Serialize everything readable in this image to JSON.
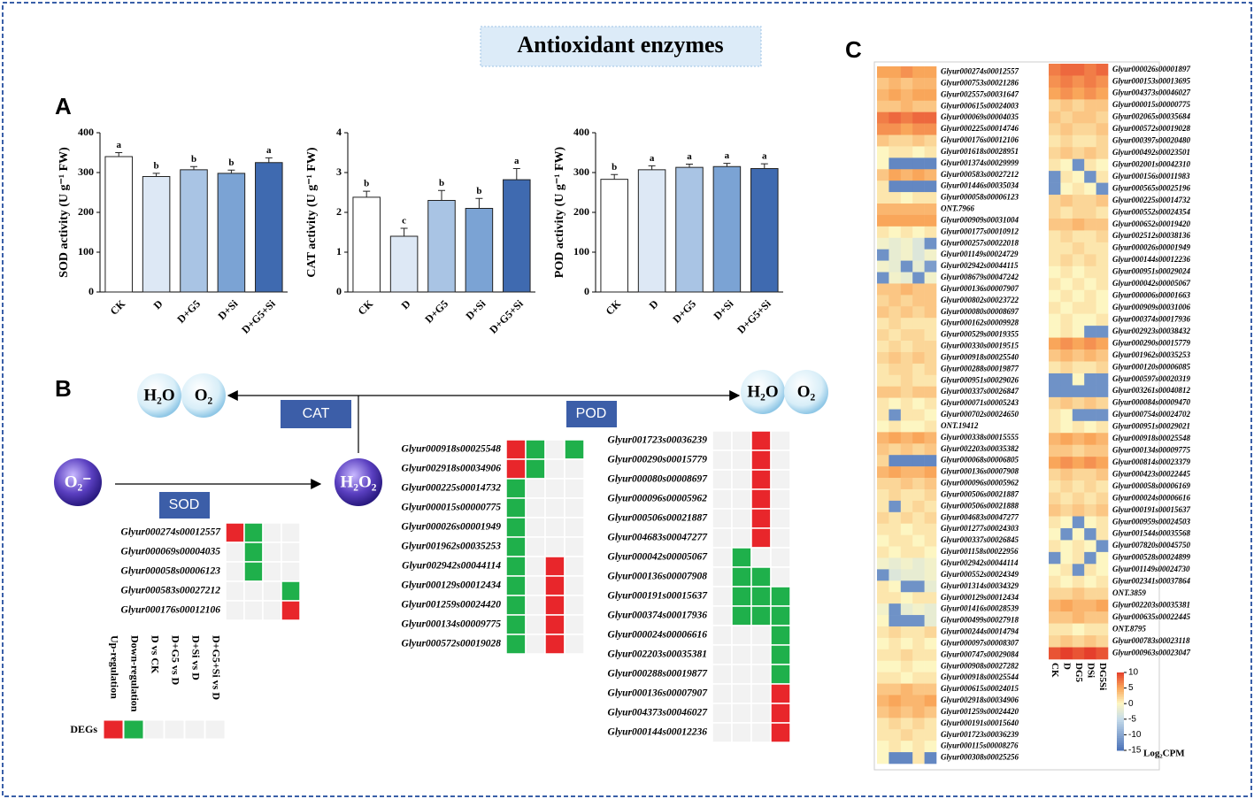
{
  "title": "Antioxidant enzymes",
  "panel_labels": [
    "A",
    "B",
    "C"
  ],
  "chart_data": [
    {
      "type": "bar",
      "ylabel": "SOD activity (U g⁻¹ FW)",
      "categories": [
        "CK",
        "D",
        "D+G5",
        "D+Si",
        "D+G5+Si"
      ],
      "values": [
        340,
        290,
        307,
        298,
        325
      ],
      "errors": [
        10,
        8,
        8,
        8,
        12
      ],
      "letters": [
        "a",
        "b",
        "b",
        "b",
        "a"
      ],
      "colors": [
        "#ffffff",
        "#dde8f5",
        "#a9c4e4",
        "#7ba3d4",
        "#3f6ab0"
      ],
      "ylim": [
        0,
        400
      ],
      "yticks": [
        0,
        100,
        200,
        300,
        400
      ]
    },
    {
      "type": "bar",
      "ylabel": "CAT activity (U g⁻¹ FW)",
      "categories": [
        "CK",
        "D",
        "D+G5",
        "D+Si",
        "D+G5+Si"
      ],
      "values": [
        2.38,
        1.4,
        2.3,
        2.1,
        2.82
      ],
      "errors": [
        0.15,
        0.2,
        0.25,
        0.25,
        0.28
      ],
      "letters": [
        "b",
        "c",
        "b",
        "b",
        "a"
      ],
      "colors": [
        "#ffffff",
        "#dde8f5",
        "#a9c4e4",
        "#7ba3d4",
        "#3f6ab0"
      ],
      "ylim": [
        0,
        4
      ],
      "yticks": [
        0,
        1,
        2,
        3,
        4
      ]
    },
    {
      "type": "bar",
      "ylabel": "POD activity (U g⁻¹ FW)",
      "categories": [
        "CK",
        "D",
        "D+G5",
        "D+Si",
        "D+G5+Si"
      ],
      "values": [
        283,
        307,
        313,
        315,
        310
      ],
      "errors": [
        12,
        10,
        8,
        8,
        12
      ],
      "letters": [
        "b",
        "a",
        "a",
        "a",
        "a"
      ],
      "colors": [
        "#ffffff",
        "#dde8f5",
        "#a9c4e4",
        "#7ba3d4",
        "#3f6ab0"
      ],
      "ylim": [
        0,
        400
      ],
      "yticks": [
        0,
        100,
        200,
        300,
        400
      ]
    }
  ],
  "pathway": {
    "h2o_left": "H₂O",
    "o2_left": "O₂",
    "cat": "CAT",
    "pod": "POD",
    "sod": "SOD",
    "superoxide": "O₂⁻",
    "h2o2": "H₂O₂",
    "h2o_right": "H₂O",
    "o2_right": "O₂"
  },
  "deg": {
    "legend_label": "DEGs",
    "legend_columns": [
      "Up-regulation",
      "Down-regulation",
      "D vs CK",
      "D+G5 vs D",
      "D+Si vs D",
      "D+G5+Si vs D"
    ],
    "up_color": "#e8262b",
    "down_color": "#1fb04b",
    "sod": {
      "genes": [
        "Glyur000274s00012557",
        "Glyur000069s00004035",
        "Glyur000058s00006123",
        "Glyur000583s00027212",
        "Glyur000176s00012106"
      ],
      "values": [
        [
          1,
          -1,
          0,
          0
        ],
        [
          0,
          -1,
          0,
          0
        ],
        [
          0,
          -1,
          0,
          0
        ],
        [
          0,
          0,
          0,
          -1
        ],
        [
          0,
          0,
          0,
          1
        ]
      ]
    },
    "pod_left": {
      "genes": [
        "Glyur000918s00025548",
        "Glyur002918s00034906",
        "Glyur000225s00014732",
        "Glyur000015s00000775",
        "Glyur000026s00001949",
        "Glyur001962s00035253",
        "Glyur002942s00044114",
        "Glyur000129s00012434",
        "Glyur001259s00024420",
        "Glyur000134s00009775",
        "Glyur000572s00019028"
      ],
      "values": [
        [
          1,
          -1,
          0,
          -1
        ],
        [
          1,
          -1,
          0,
          0
        ],
        [
          -1,
          0,
          0,
          0
        ],
        [
          -1,
          0,
          0,
          0
        ],
        [
          -1,
          0,
          0,
          0
        ],
        [
          -1,
          0,
          0,
          0
        ],
        [
          -1,
          0,
          1,
          0
        ],
        [
          -1,
          0,
          1,
          0
        ],
        [
          -1,
          0,
          1,
          0
        ],
        [
          -1,
          0,
          1,
          0
        ],
        [
          -1,
          0,
          1,
          0
        ]
      ]
    },
    "pod_right": {
      "genes": [
        "Glyur001723s00036239",
        "Glyur000290s00015779",
        "Glyur000080s00008697",
        "Glyur000096s00005962",
        "Glyur000506s00021887",
        "Glyur004683s00047277",
        "Glyur000042s00005067",
        "Glyur000136s00007908",
        "Glyur000191s00015637",
        "Glyur000374s00017936",
        "Glyur000024s00006616",
        "Glyur002203s00035381",
        "Glyur000288s00019877",
        "Glyur000136s00007907",
        "Glyur004373s00046027",
        "Glyur000144s00012236"
      ],
      "values": [
        [
          0,
          0,
          1,
          0
        ],
        [
          0,
          0,
          1,
          0
        ],
        [
          0,
          0,
          1,
          0
        ],
        [
          0,
          0,
          1,
          0
        ],
        [
          0,
          0,
          1,
          0
        ],
        [
          0,
          0,
          1,
          0
        ],
        [
          0,
          -1,
          0,
          0
        ],
        [
          0,
          -1,
          -1,
          0
        ],
        [
          0,
          -1,
          -1,
          -1
        ],
        [
          0,
          -1,
          -1,
          -1
        ],
        [
          0,
          0,
          0,
          -1
        ],
        [
          0,
          0,
          0,
          -1
        ],
        [
          0,
          0,
          0,
          -1
        ],
        [
          0,
          0,
          0,
          1
        ],
        [
          0,
          0,
          0,
          1
        ],
        [
          0,
          0,
          0,
          1
        ]
      ]
    }
  },
  "heatmap": {
    "columns": [
      "CK",
      "D",
      "DG5",
      "DSi",
      "DG5Si"
    ],
    "colorbar_label": "Log₂CPM",
    "colorbar_ticks": [
      10,
      5,
      0,
      -5,
      -10,
      -15
    ],
    "colorscale": [
      [
        -15,
        "#4a72b8"
      ],
      [
        -5,
        "#c6dcea"
      ],
      [
        0,
        "#fdf6c2"
      ],
      [
        5,
        "#f9a65a"
      ],
      [
        10,
        "#e53f2b"
      ]
    ],
    "left": {
      "genes": [
        "Glyur000274s00012557",
        "Glyur000753s00021286",
        "Glyur002557s00031647",
        "Glyur000615s00024003",
        "Glyur000069s00004035",
        "Glyur000225s00014746",
        "Glyur000176s00012106",
        "Glyur001618s00028951",
        "Glyur001374s00029999",
        "Glyur000583s00027212",
        "Glyur001446s00035034",
        "Glyur000058s00006123",
        "ONT.7966",
        "Glyur000909s00031004",
        "Glyur000177s00010912",
        "Glyur000257s00022018",
        "Glyur001149s00024729",
        "Glyur002942s00044115",
        "Glyur008679s00047242",
        "Glyur000136s00007907",
        "Glyur000802s00023722",
        "Glyur000080s00008697",
        "Glyur000162s00009928",
        "Glyur000529s00019355",
        "Glyur000330s00019515",
        "Glyur000918s00025540",
        "Glyur000288s00019877",
        "Glyur000951s00029026",
        "Glyur000337s00026847",
        "Glyur000071s00005243",
        "Glyur000702s00024650",
        "ONT.19412",
        "Glyur000338s00015555",
        "Glyur002203s00035382",
        "Glyur000068s00006805",
        "Glyur000136s00007908",
        "Glyur000096s00005962",
        "Glyur000506s00021887",
        "Glyur000506s00021888",
        "Glyur004683s00047277",
        "Glyur001277s00024303",
        "Glyur000337s00026845",
        "Glyur001158s00022956",
        "Glyur002942s00044114",
        "Glyur000552s00024349",
        "Glyur001314s00034329",
        "Glyur000129s00012434",
        "Glyur001416s00028539",
        "Glyur000499s00027918",
        "Glyur000244s00014794",
        "Glyur000097s00008307",
        "Glyur000747s00029084",
        "Glyur000908s00027282",
        "Glyur000918s00025544",
        "Glyur000615s00024015",
        "Glyur002918s00034906",
        "Glyur001259s00024420",
        "Glyur000191s00015640",
        "Glyur001723s00036239",
        "Glyur000115s00008276",
        "Glyur000308s00025256"
      ],
      "values": [
        [
          5,
          5,
          6,
          5,
          5
        ],
        [
          3,
          4,
          3,
          4,
          4
        ],
        [
          4,
          5,
          4,
          5,
          5
        ],
        [
          3,
          3,
          4,
          3,
          3
        ],
        [
          7,
          8,
          7,
          8,
          8
        ],
        [
          6,
          6,
          5,
          6,
          6
        ],
        [
          3,
          2,
          2,
          3,
          2
        ],
        [
          0,
          1,
          1,
          0,
          1
        ],
        [
          0,
          -13,
          -13,
          -13,
          -13
        ],
        [
          3,
          5,
          4,
          5,
          4
        ],
        [
          1,
          -13,
          -13,
          -13,
          -13
        ],
        [
          1,
          1,
          0,
          1,
          1
        ],
        [
          4,
          4,
          4,
          4,
          4
        ],
        [
          5,
          5,
          5,
          5,
          5
        ],
        [
          1,
          0,
          1,
          0,
          1
        ],
        [
          -1,
          -2,
          -1,
          -3,
          -12
        ],
        [
          -12,
          -2,
          -1,
          -3,
          -1
        ],
        [
          -1,
          -2,
          -12,
          -2,
          -11
        ],
        [
          -12,
          -1,
          -2,
          -12,
          -1
        ],
        [
          3,
          3,
          4,
          3,
          3
        ],
        [
          2,
          3,
          2,
          3,
          3
        ],
        [
          3,
          2,
          3,
          2,
          3
        ],
        [
          1,
          2,
          1,
          1,
          1
        ],
        [
          2,
          1,
          2,
          2,
          1
        ],
        [
          1,
          2,
          1,
          2,
          2
        ],
        [
          2,
          3,
          2,
          3,
          2
        ],
        [
          1,
          2,
          2,
          1,
          2
        ],
        [
          1,
          1,
          2,
          1,
          1
        ],
        [
          3,
          3,
          2,
          3,
          3
        ],
        [
          1,
          0,
          1,
          0,
          1
        ],
        [
          1,
          -12,
          1,
          1,
          0
        ],
        [
          0,
          1,
          0,
          0,
          1
        ],
        [
          4,
          5,
          4,
          5,
          4
        ],
        [
          3,
          2,
          3,
          2,
          3
        ],
        [
          2,
          -13,
          -13,
          -13,
          -13
        ],
        [
          4,
          5,
          4,
          4,
          5
        ],
        [
          2,
          2,
          3,
          2,
          3
        ],
        [
          1,
          2,
          1,
          1,
          2
        ],
        [
          1,
          -12,
          1,
          2,
          1
        ],
        [
          2,
          1,
          2,
          1,
          2
        ],
        [
          1,
          1,
          0,
          1,
          1
        ],
        [
          0,
          1,
          1,
          0,
          1
        ],
        [
          1,
          0,
          1,
          1,
          0
        ],
        [
          -1,
          -2,
          -1,
          -2,
          -1
        ],
        [
          -12,
          -3,
          -2,
          -2,
          -1
        ],
        [
          1,
          0,
          -12,
          -12,
          -2
        ],
        [
          1,
          1,
          0,
          1,
          1
        ],
        [
          -1,
          -12,
          -2,
          -1,
          -2
        ],
        [
          0,
          -12,
          -12,
          -12,
          -2
        ],
        [
          1,
          2,
          1,
          1,
          2
        ],
        [
          0,
          1,
          0,
          1,
          0
        ],
        [
          1,
          1,
          2,
          1,
          1
        ],
        [
          0,
          0,
          1,
          0,
          0
        ],
        [
          1,
          1,
          0,
          1,
          1
        ],
        [
          3,
          3,
          4,
          3,
          3
        ],
        [
          4,
          5,
          4,
          4,
          5
        ],
        [
          3,
          4,
          3,
          4,
          3
        ],
        [
          1,
          2,
          1,
          2,
          1
        ],
        [
          1,
          1,
          2,
          1,
          1
        ],
        [
          0,
          1,
          0,
          1,
          0
        ],
        [
          0,
          -13,
          -13,
          1,
          -13
        ]
      ]
    },
    "right": {
      "genes": [
        "Glyur000026s00001897",
        "Glyur000153s00013695",
        "Glyur004373s00046027",
        "Glyur000015s00000775",
        "Glyur002065s00035684",
        "Glyur000572s00019028",
        "Glyur000397s00020480",
        "Glyur000492s00023501",
        "Glyur002001s00042310",
        "Glyur000156s00011983",
        "Glyur000565s00025196",
        "Glyur000225s00014732",
        "Glyur000552s00024354",
        "Glyur000652s00019420",
        "Glyur002512s00038136",
        "Glyur000026s00001949",
        "Glyur000144s00012236",
        "Glyur000951s00029024",
        "Glyur000042s00005067",
        "Glyur000006s00001663",
        "Glyur000909s00031006",
        "Glyur000374s00017936",
        "Glyur002923s00038432",
        "Glyur000290s00015779",
        "Glyur001962s00035253",
        "Glyur000120s00006085",
        "Glyur000597s00020319",
        "Glyur003261s00040812",
        "Glyur000084s00009470",
        "Glyur000754s00024702",
        "Glyur000951s00029021",
        "Glyur000918s00025548",
        "Glyur000134s00009775",
        "Glyur000814s00023379",
        "Glyur000423s00022445",
        "Glyur000058s00006169",
        "Glyur000024s00006616",
        "Glyur000191s00015637",
        "Glyur000959s00024503",
        "Glyur001544s00035568",
        "Glyur007820s00045750",
        "Glyur000528s00024899",
        "Glyur001149s00024730",
        "Glyur002341s00037864",
        "ONT.3859",
        "Glyur002203s00035381",
        "Glyur000635s00022445",
        "ONT.8795",
        "Glyur000783s00023118",
        "Glyur000963s00023047"
      ],
      "values": [
        [
          7,
          8,
          8,
          7,
          8
        ],
        [
          6,
          7,
          6,
          7,
          6
        ],
        [
          5,
          6,
          5,
          6,
          5
        ],
        [
          2,
          3,
          2,
          3,
          3
        ],
        [
          3,
          2,
          3,
          3,
          2
        ],
        [
          2,
          3,
          2,
          2,
          3
        ],
        [
          1,
          2,
          1,
          1,
          2
        ],
        [
          2,
          3,
          2,
          3,
          2
        ],
        [
          1,
          0,
          -12,
          1,
          0
        ],
        [
          -12,
          1,
          0,
          -12,
          1
        ],
        [
          -12,
          0,
          1,
          0,
          -12
        ],
        [
          2,
          3,
          2,
          2,
          3
        ],
        [
          2,
          1,
          2,
          2,
          1
        ],
        [
          3,
          3,
          4,
          3,
          3
        ],
        [
          1,
          2,
          1,
          1,
          2
        ],
        [
          1,
          1,
          2,
          1,
          1
        ],
        [
          1,
          2,
          1,
          2,
          1
        ],
        [
          0,
          1,
          0,
          1,
          1
        ],
        [
          1,
          0,
          1,
          0,
          1
        ],
        [
          0,
          1,
          0,
          1,
          0
        ],
        [
          1,
          0,
          1,
          1,
          0
        ],
        [
          0,
          1,
          0,
          0,
          1
        ],
        [
          0,
          1,
          0,
          -12,
          -12
        ],
        [
          5,
          6,
          5,
          6,
          5
        ],
        [
          3,
          4,
          3,
          4,
          3
        ],
        [
          1,
          2,
          1,
          1,
          2
        ],
        [
          -12,
          -12,
          0,
          -12,
          -12
        ],
        [
          -12,
          -12,
          -12,
          -12,
          -12
        ],
        [
          2,
          3,
          2,
          3,
          2
        ],
        [
          1,
          0,
          -12,
          -12,
          -12
        ],
        [
          1,
          0,
          1,
          0,
          1
        ],
        [
          4,
          5,
          4,
          5,
          4
        ],
        [
          3,
          3,
          2,
          3,
          3
        ],
        [
          5,
          6,
          5,
          6,
          5
        ],
        [
          2,
          3,
          2,
          2,
          3
        ],
        [
          1,
          2,
          1,
          2,
          1
        ],
        [
          2,
          1,
          2,
          1,
          2
        ],
        [
          3,
          2,
          3,
          2,
          3
        ],
        [
          1,
          0,
          -12,
          0,
          1
        ],
        [
          0,
          -12,
          0,
          -12,
          1
        ],
        [
          1,
          0,
          1,
          0,
          -12
        ],
        [
          -12,
          0,
          1,
          -12,
          0
        ],
        [
          0,
          1,
          -12,
          1,
          0
        ],
        [
          1,
          0,
          1,
          0,
          1
        ],
        [
          2,
          2,
          3,
          2,
          2
        ],
        [
          4,
          5,
          4,
          4,
          5
        ],
        [
          3,
          3,
          4,
          3,
          3
        ],
        [
          1,
          1,
          0,
          1,
          1
        ],
        [
          2,
          3,
          2,
          3,
          2
        ],
        [
          9,
          10,
          9,
          10,
          9
        ]
      ]
    }
  }
}
